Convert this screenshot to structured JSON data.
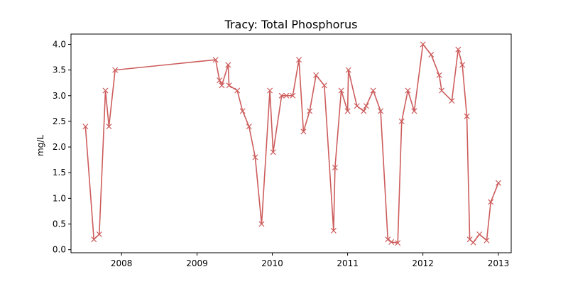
{
  "chart_data": {
    "type": "line",
    "title": "Tracy: Total Phosphorus",
    "xlabel": "",
    "ylabel": "mg/L",
    "x_ticks": [
      "2008",
      "2009",
      "2010",
      "2011",
      "2012",
      "2013"
    ],
    "y_ticks": [
      "0.0",
      "0.5",
      "1.0",
      "1.5",
      "2.0",
      "2.5",
      "3.0",
      "3.5",
      "4.0"
    ],
    "xlim": [
      "2007-05-01",
      "2013-03-04"
    ],
    "ylim": [
      -0.06,
      4.2
    ],
    "grid": false,
    "legend": "none",
    "marker": "x",
    "color": "#cd5c5c",
    "series": [
      {
        "x": [
          "2007-07-10",
          "2007-08-20",
          "2007-09-15",
          "2007-10-15",
          "2007-11-01",
          "2007-12-01",
          "2009-04-01",
          "2009-04-20",
          "2009-05-01",
          "2009-06-01",
          "2009-06-05",
          "2009-07-15",
          "2009-08-10",
          "2009-09-10",
          "2009-10-10",
          "2009-11-10",
          "2009-12-20",
          "2010-01-05",
          "2010-02-15",
          "2010-03-10",
          "2010-04-10",
          "2010-05-10",
          "2010-06-01",
          "2010-07-01",
          "2010-08-01",
          "2010-09-10",
          "2010-10-25",
          "2010-11-01",
          "2010-12-01",
          "2011-01-01",
          "2011-01-05",
          "2011-02-15",
          "2011-03-20",
          "2011-04-01",
          "2011-05-05",
          "2011-06-10",
          "2011-07-15",
          "2011-08-01",
          "2011-09-01",
          "2011-09-20",
          "2011-10-20",
          "2011-11-20",
          "2012-01-01",
          "2012-02-10",
          "2012-03-20",
          "2012-04-01",
          "2012-05-20",
          "2012-06-20",
          "2012-07-10",
          "2012-08-01",
          "2012-08-15",
          "2012-09-01",
          "2012-10-01",
          "2012-11-05",
          "2012-11-25",
          "2013-01-01"
        ],
        "values": [
          2.4,
          0.2,
          0.3,
          3.1,
          2.4,
          3.5,
          3.7,
          3.3,
          3.2,
          3.6,
          3.2,
          3.1,
          2.7,
          2.4,
          1.8,
          0.5,
          3.1,
          1.9,
          3.0,
          3.0,
          3.0,
          3.7,
          2.3,
          2.7,
          3.4,
          3.2,
          0.37,
          1.6,
          3.1,
          2.7,
          3.5,
          2.8,
          2.7,
          2.8,
          3.1,
          2.7,
          0.2,
          0.15,
          0.13,
          2.5,
          3.1,
          2.7,
          4.0,
          3.8,
          3.4,
          3.1,
          2.9,
          3.9,
          3.6,
          2.6,
          0.2,
          0.14,
          0.3,
          0.18,
          0.93,
          1.3
        ]
      }
    ]
  }
}
